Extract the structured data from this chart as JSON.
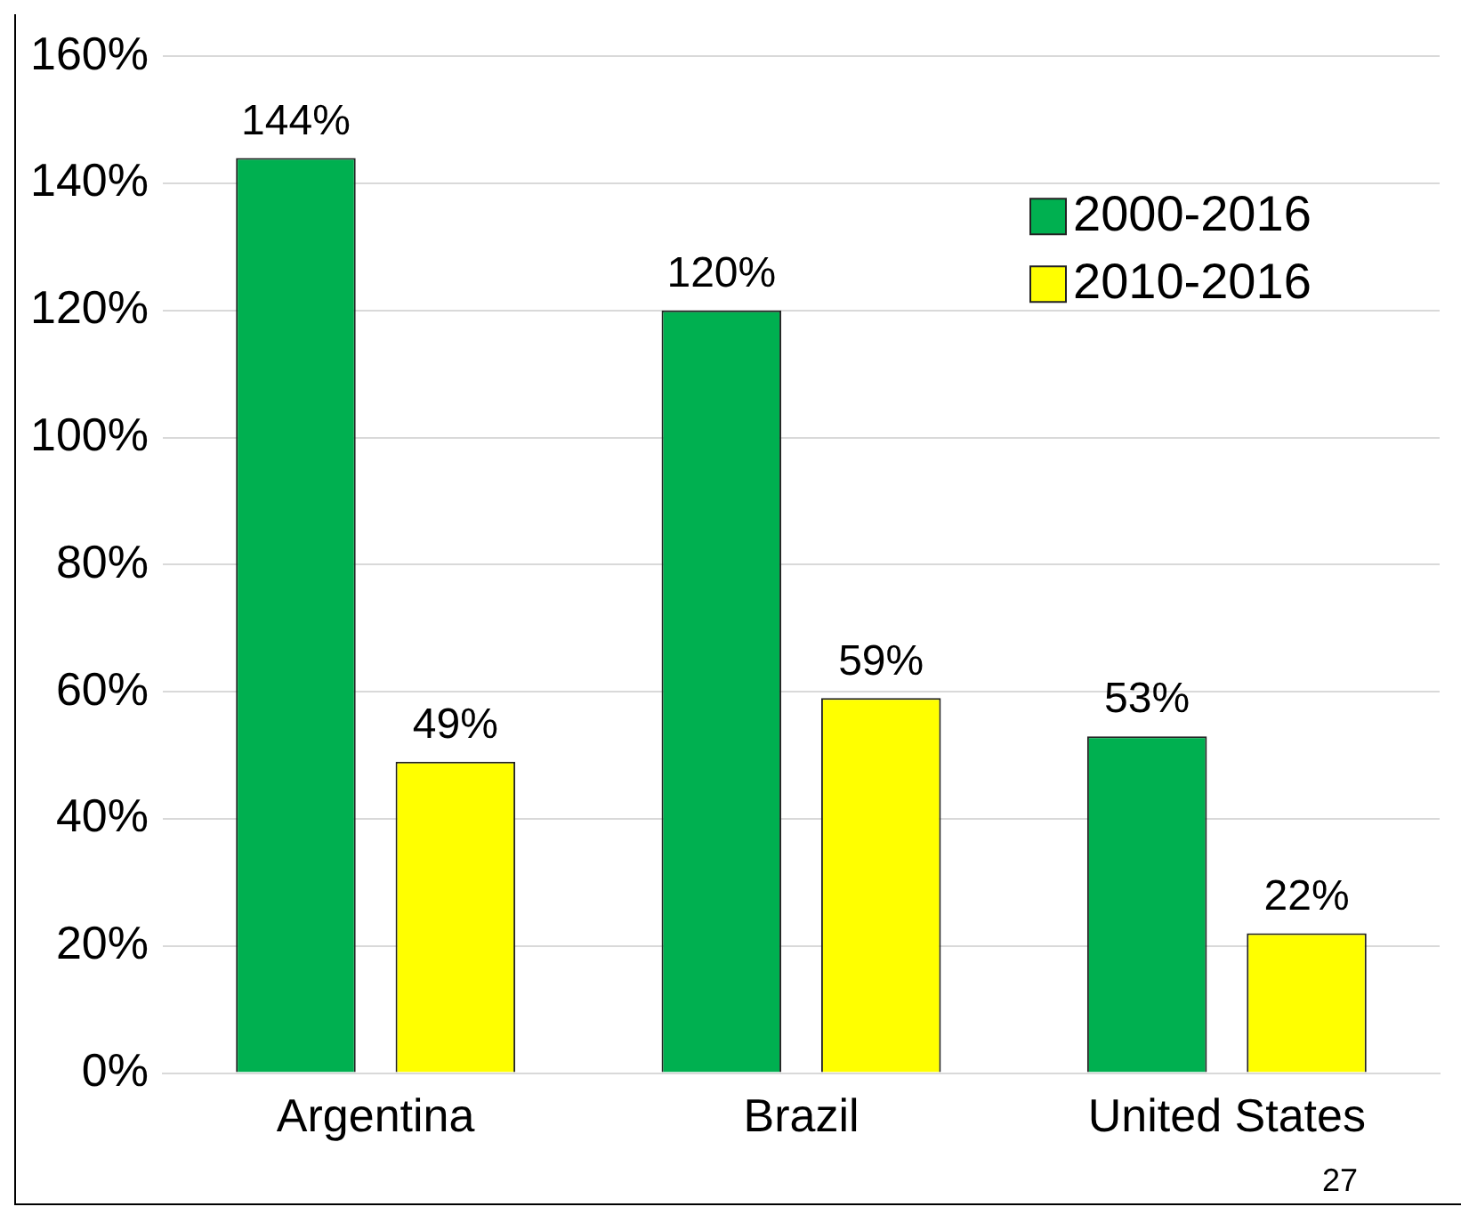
{
  "chart_data": {
    "type": "bar",
    "categories": [
      "Argentina",
      "Brazil",
      "United States"
    ],
    "series": [
      {
        "name": "2000-2016",
        "color": "#00b050",
        "values": [
          144,
          120,
          53
        ],
        "value_labels": [
          "144%",
          "120%",
          "53%"
        ]
      },
      {
        "name": "2010-2016",
        "color": "#ffff00",
        "values": [
          49,
          59,
          22
        ],
        "value_labels": [
          "49%",
          "59%",
          "22%"
        ]
      }
    ],
    "ylim": [
      0,
      160
    ],
    "yticks": [
      {
        "value": 0,
        "label": "0%"
      },
      {
        "value": 20,
        "label": "20%"
      },
      {
        "value": 40,
        "label": "40%"
      },
      {
        "value": 60,
        "label": "60%"
      },
      {
        "value": 80,
        "label": "80%"
      },
      {
        "value": 100,
        "label": "100%"
      },
      {
        "value": 120,
        "label": "120%"
      },
      {
        "value": 140,
        "label": "140%"
      },
      {
        "value": 160,
        "label": "160%"
      }
    ],
    "grid": "y",
    "legend": "top right",
    "annotations": [
      "27"
    ]
  }
}
